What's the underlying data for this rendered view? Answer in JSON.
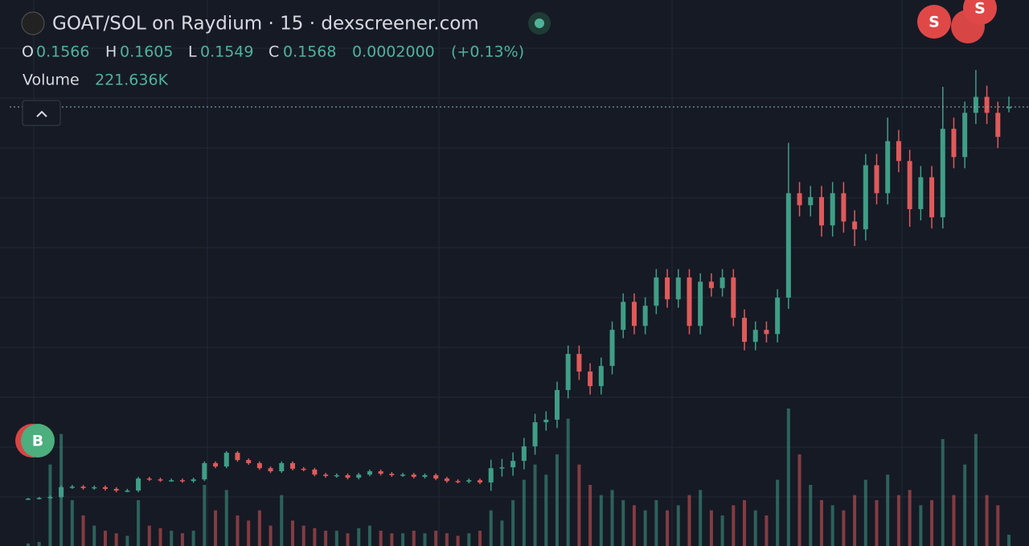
{
  "chart_data": {
    "type": "candlestick",
    "title": "GOAT/SOL on Raydium · 15 · dexscreener.com",
    "up_color": "#3f9e86",
    "down_color": "#e05a5a",
    "ylim": [
      0,
      0.195
    ],
    "grid": true,
    "ohlc_labels": [
      "O",
      "H",
      "L",
      "C"
    ],
    "change": {
      "value": 0.0002,
      "label": "0.0002000"
    },
    "change_pct": {
      "value": 0.13,
      "label": "(+0.13%)"
    },
    "candles": [
      [
        0.0169,
        0.0172,
        0.0166,
        0.0169
      ],
      [
        0.0169,
        0.0175,
        0.0166,
        0.0172
      ],
      [
        0.0172,
        0.0181,
        0.0169,
        0.0175
      ],
      [
        0.0175,
        0.0216,
        0.0172,
        0.021
      ],
      [
        0.021,
        0.0218,
        0.0204,
        0.0212
      ],
      [
        0.0212,
        0.0218,
        0.0201,
        0.0207
      ],
      [
        0.0207,
        0.0216,
        0.0201,
        0.021
      ],
      [
        0.021,
        0.0216,
        0.0198,
        0.0204
      ],
      [
        0.0204,
        0.021,
        0.0192,
        0.0198
      ],
      [
        0.0198,
        0.0204,
        0.0192,
        0.0198
      ],
      [
        0.0198,
        0.0247,
        0.0192,
        0.0241
      ],
      [
        0.0241,
        0.0247,
        0.0232,
        0.0238
      ],
      [
        0.0238,
        0.0244,
        0.0229,
        0.0235
      ],
      [
        0.0235,
        0.0241,
        0.0229,
        0.0235
      ],
      [
        0.0235,
        0.0241,
        0.0226,
        0.0232
      ],
      [
        0.0232,
        0.0244,
        0.0226,
        0.0238
      ],
      [
        0.0238,
        0.0302,
        0.0232,
        0.0296
      ],
      [
        0.0296,
        0.0302,
        0.0278,
        0.0284
      ],
      [
        0.0284,
        0.0339,
        0.0278,
        0.0333
      ],
      [
        0.0333,
        0.0339,
        0.0301,
        0.0307
      ],
      [
        0.0307,
        0.0313,
        0.029,
        0.0296
      ],
      [
        0.0296,
        0.0302,
        0.0272,
        0.0278
      ],
      [
        0.0278,
        0.0284,
        0.0261,
        0.0267
      ],
      [
        0.0267,
        0.0302,
        0.0261,
        0.0296
      ],
      [
        0.0296,
        0.0302,
        0.027,
        0.0276
      ],
      [
        0.0276,
        0.0282,
        0.0267,
        0.0273
      ],
      [
        0.0273,
        0.0279,
        0.0249,
        0.0255
      ],
      [
        0.0255,
        0.0261,
        0.0244,
        0.025
      ],
      [
        0.025,
        0.0259,
        0.0244,
        0.0253
      ],
      [
        0.0253,
        0.0259,
        0.0238,
        0.0244
      ],
      [
        0.0244,
        0.0261,
        0.0238,
        0.0255
      ],
      [
        0.0255,
        0.0273,
        0.0249,
        0.0267
      ],
      [
        0.0267,
        0.0273,
        0.0252,
        0.0258
      ],
      [
        0.0258,
        0.0264,
        0.0247,
        0.0253
      ],
      [
        0.0253,
        0.0261,
        0.0247,
        0.0255
      ],
      [
        0.0255,
        0.0261,
        0.0241,
        0.0247
      ],
      [
        0.0247,
        0.0259,
        0.0241,
        0.0253
      ],
      [
        0.0253,
        0.0259,
        0.0235,
        0.0241
      ],
      [
        0.0241,
        0.0247,
        0.0226,
        0.0232
      ],
      [
        0.0232,
        0.0238,
        0.0224,
        0.023
      ],
      [
        0.023,
        0.0241,
        0.0224,
        0.0235
      ],
      [
        0.0235,
        0.0241,
        0.0221,
        0.0227
      ],
      [
        0.0227,
        0.0308,
        0.0197,
        0.0278
      ],
      [
        0.0278,
        0.0311,
        0.0248,
        0.0281
      ],
      [
        0.0281,
        0.0334,
        0.0251,
        0.0304
      ],
      [
        0.0304,
        0.0386,
        0.0274,
        0.0356
      ],
      [
        0.0356,
        0.0472,
        0.0326,
        0.0442
      ],
      [
        0.0442,
        0.0481,
        0.0412,
        0.0451
      ],
      [
        0.0451,
        0.0587,
        0.0421,
        0.0557
      ],
      [
        0.0557,
        0.0716,
        0.0527,
        0.0686
      ],
      [
        0.0686,
        0.0716,
        0.0593,
        0.0623
      ],
      [
        0.0623,
        0.0653,
        0.0541,
        0.0571
      ],
      [
        0.0571,
        0.0673,
        0.0541,
        0.0643
      ],
      [
        0.0643,
        0.0802,
        0.0613,
        0.0772
      ],
      [
        0.0772,
        0.0902,
        0.0742,
        0.0872
      ],
      [
        0.0872,
        0.0902,
        0.0756,
        0.0786
      ],
      [
        0.0786,
        0.0888,
        0.0756,
        0.0858
      ],
      [
        0.0858,
        0.0989,
        0.0828,
        0.0959
      ],
      [
        0.0959,
        0.0989,
        0.0851,
        0.0881
      ],
      [
        0.0881,
        0.0989,
        0.0851,
        0.0959
      ],
      [
        0.0959,
        0.0989,
        0.0756,
        0.0786
      ],
      [
        0.0786,
        0.0974,
        0.0756,
        0.0944
      ],
      [
        0.0944,
        0.0974,
        0.0891,
        0.0921
      ],
      [
        0.0921,
        0.0989,
        0.0891,
        0.0959
      ],
      [
        0.0959,
        0.0989,
        0.0785,
        0.0815
      ],
      [
        0.0815,
        0.0845,
        0.0699,
        0.0729
      ],
      [
        0.0729,
        0.0802,
        0.0699,
        0.0772
      ],
      [
        0.0772,
        0.0802,
        0.0727,
        0.0757
      ],
      [
        0.0757,
        0.0917,
        0.0727,
        0.0887
      ],
      [
        0.0887,
        0.144,
        0.0847,
        0.126
      ],
      [
        0.126,
        0.13,
        0.1177,
        0.1217
      ],
      [
        0.1217,
        0.1286,
        0.1177,
        0.1246
      ],
      [
        0.1246,
        0.1286,
        0.1105,
        0.1145
      ],
      [
        0.1145,
        0.13,
        0.1105,
        0.126
      ],
      [
        0.126,
        0.13,
        0.1119,
        0.1159
      ],
      [
        0.1159,
        0.1199,
        0.1071,
        0.1131
      ],
      [
        0.1131,
        0.14,
        0.1091,
        0.136
      ],
      [
        0.136,
        0.14,
        0.122,
        0.126
      ],
      [
        0.126,
        0.153,
        0.122,
        0.1446
      ],
      [
        0.1446,
        0.1486,
        0.1335,
        0.1375
      ],
      [
        0.1375,
        0.1415,
        0.114,
        0.1203
      ],
      [
        0.1203,
        0.1357,
        0.1163,
        0.1317
      ],
      [
        0.1317,
        0.1357,
        0.1134,
        0.1174
      ],
      [
        0.1174,
        0.164,
        0.1134,
        0.149
      ],
      [
        0.149,
        0.153,
        0.1349,
        0.1389
      ],
      [
        0.1389,
        0.1587,
        0.1349,
        0.1547
      ],
      [
        0.1547,
        0.17,
        0.1507,
        0.1604
      ],
      [
        0.1604,
        0.1644,
        0.1507,
        0.1547
      ],
      [
        0.1547,
        0.1587,
        0.1421,
        0.1461
      ],
      [
        0.1566,
        0.1605,
        0.1549,
        0.1568
      ]
    ],
    "volume": {
      "name": "Volume",
      "ylim": [
        0,
        3000000
      ],
      "values": [
        50000,
        80000,
        1600000,
        2200000,
        900000,
        600000,
        400000,
        300000,
        250000,
        200000,
        900000,
        400000,
        350000,
        300000,
        250000,
        300000,
        1200000,
        700000,
        1100000,
        600000,
        500000,
        700000,
        400000,
        1000000,
        500000,
        400000,
        350000,
        300000,
        300000,
        250000,
        350000,
        400000,
        300000,
        250000,
        250000,
        300000,
        250000,
        300000,
        250000,
        200000,
        250000,
        300000,
        700000,
        500000,
        900000,
        1300000,
        1600000,
        1400000,
        1800000,
        2500000,
        1600000,
        1200000,
        1000000,
        1100000,
        900000,
        800000,
        700000,
        900000,
        700000,
        800000,
        1000000,
        1100000,
        700000,
        600000,
        800000,
        900000,
        700000,
        600000,
        1300000,
        2700000,
        1800000,
        1200000,
        900000,
        800000,
        700000,
        1000000,
        1300000,
        900000,
        1400000,
        1000000,
        1100000,
        800000,
        900000,
        2100000,
        1000000,
        1600000,
        2200000,
        1000000,
        800000,
        221636
      ],
      "value_labels": [
        null,
        null,
        null,
        null,
        null,
        null,
        null,
        null,
        null,
        null,
        null,
        null,
        null,
        null,
        null,
        null,
        null,
        null,
        null,
        null,
        null,
        null,
        null,
        null,
        null,
        null,
        null,
        null,
        null,
        null,
        null,
        null,
        null,
        null,
        null,
        null,
        null,
        null,
        null,
        null,
        null,
        null,
        null,
        null,
        null,
        null,
        null,
        null,
        null,
        null,
        null,
        null,
        null,
        null,
        null,
        null,
        null,
        null,
        null,
        null,
        null,
        null,
        null,
        null,
        null,
        null,
        null,
        null,
        null,
        null,
        null,
        null,
        null,
        null,
        null,
        null,
        null,
        null,
        null,
        null,
        null,
        null,
        null,
        null,
        null,
        null,
        null,
        null,
        null,
        "221.636K"
      ]
    },
    "markers": [
      {
        "label": "B",
        "color": "#4caf7d"
      },
      {
        "label": "S",
        "color": "#e04848"
      },
      {
        "label": "S",
        "color": "#e04848"
      }
    ]
  }
}
